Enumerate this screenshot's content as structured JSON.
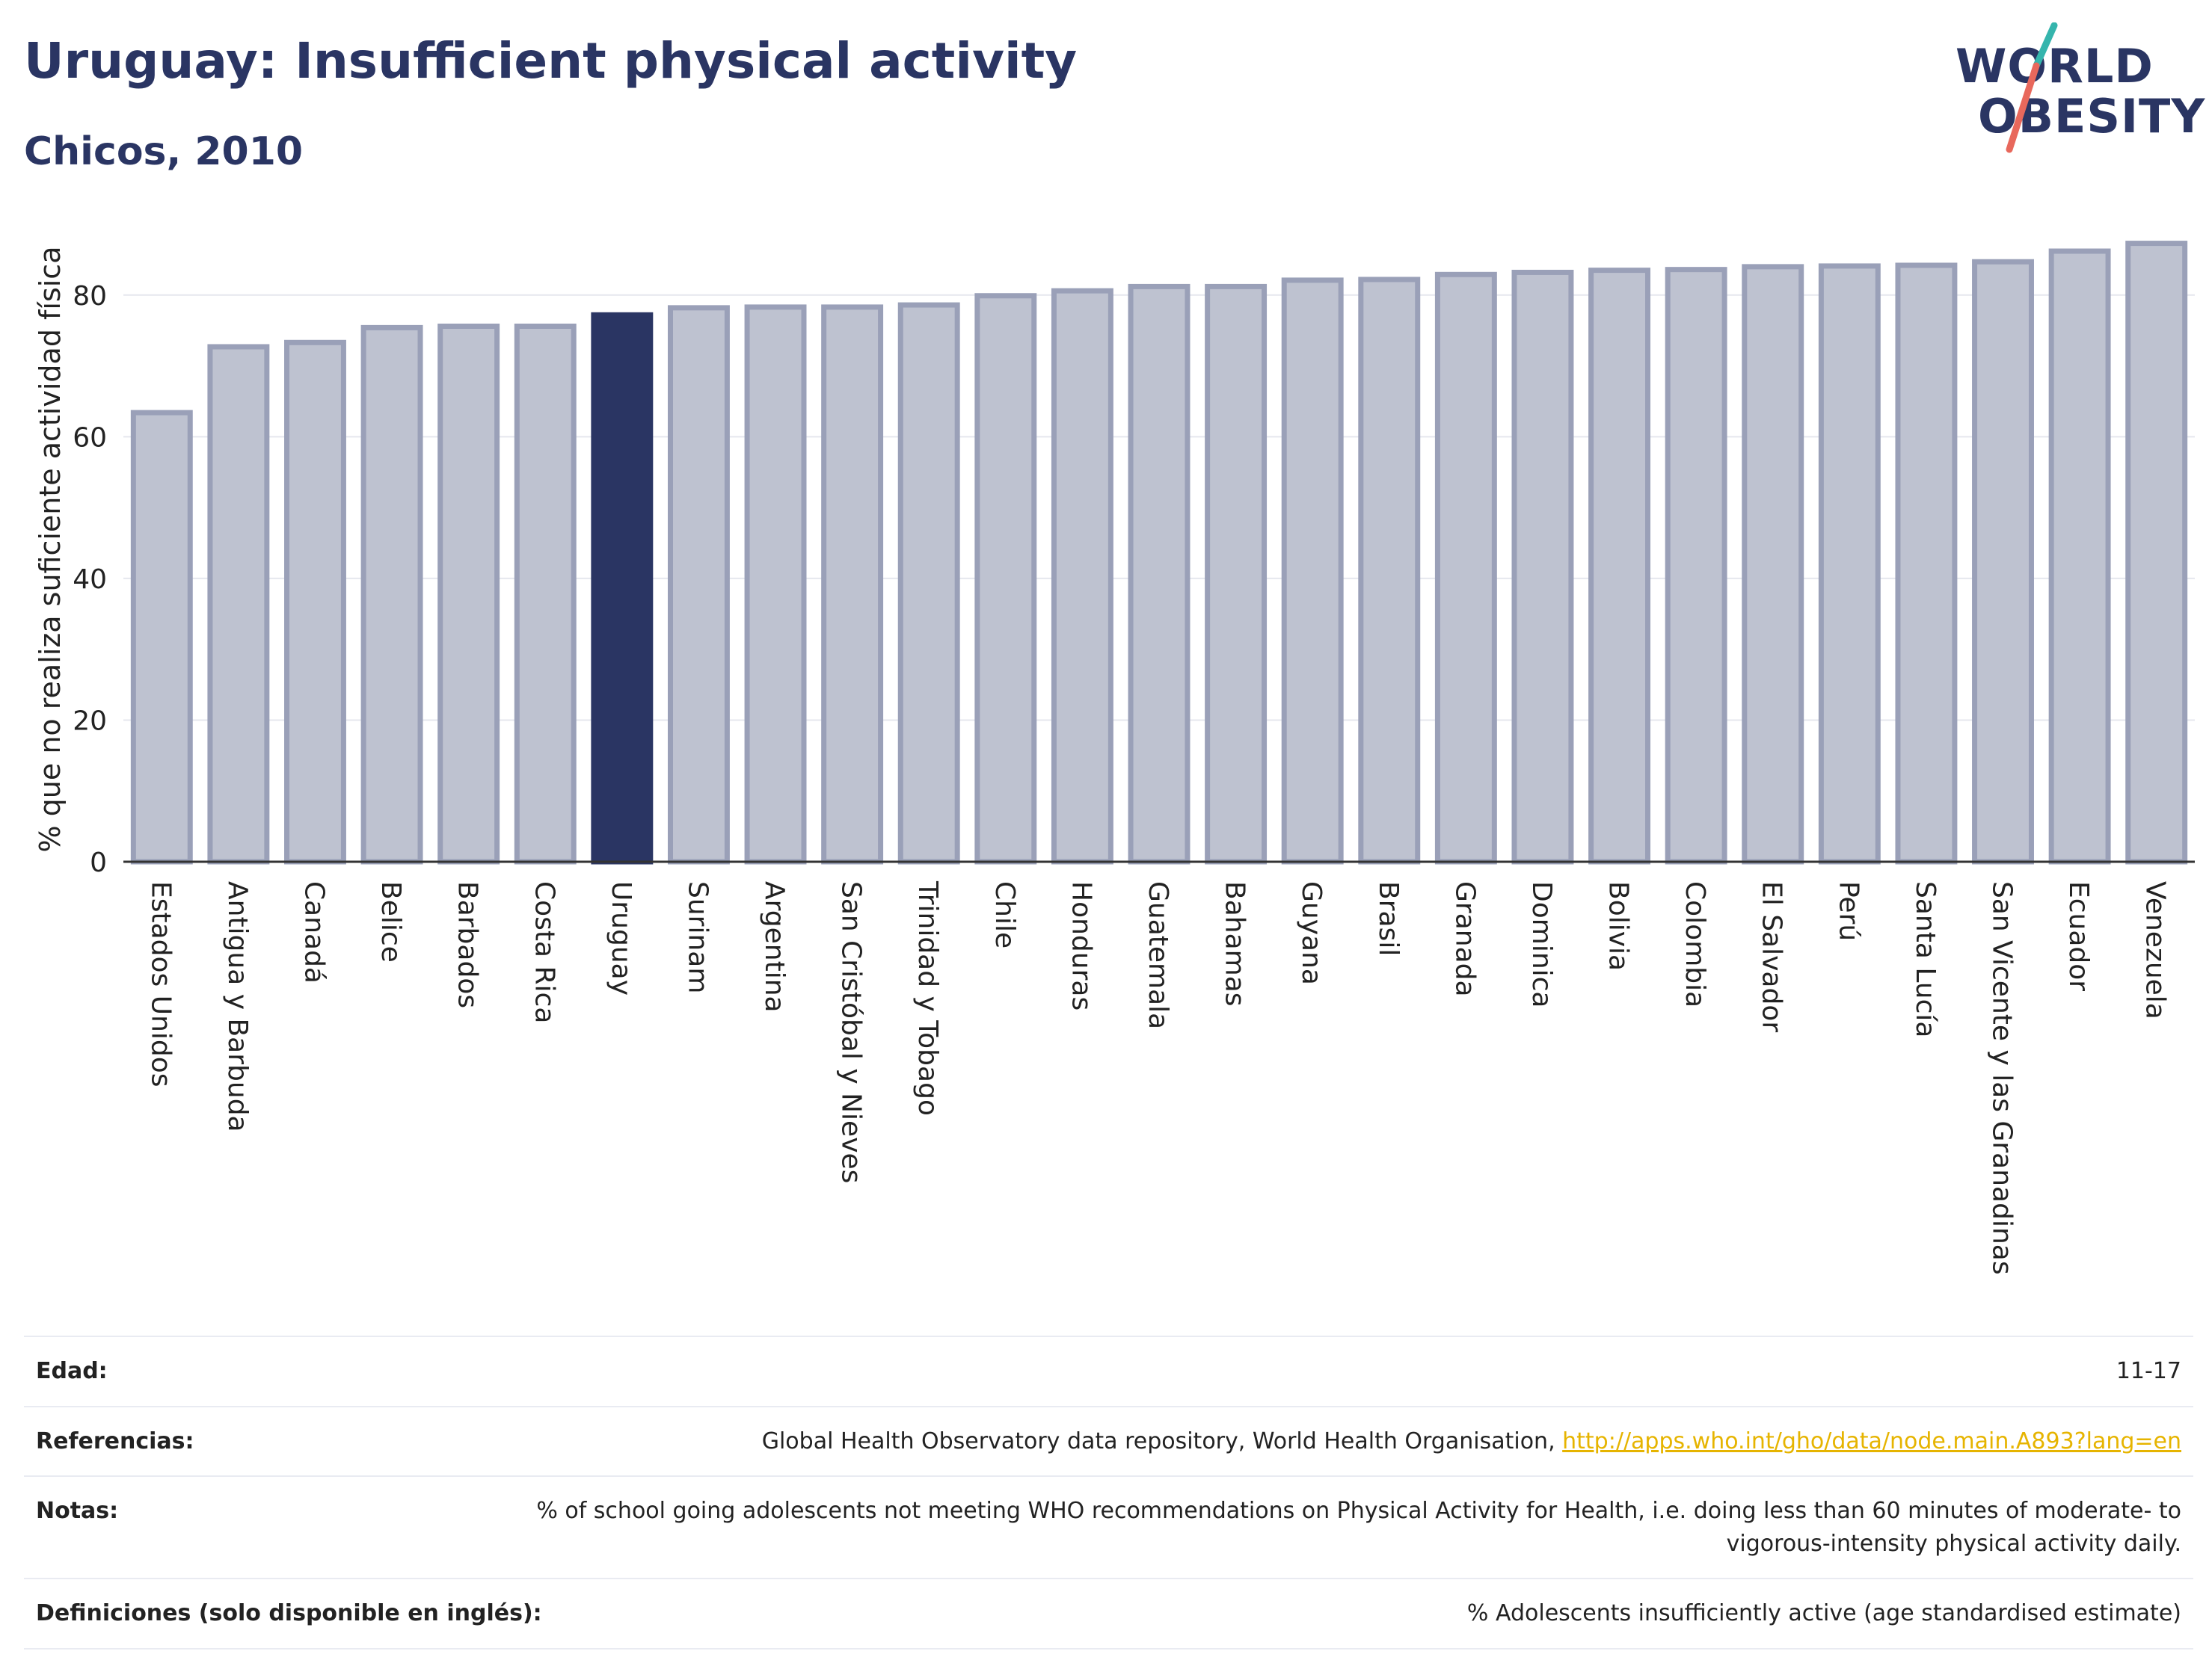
{
  "header": {
    "title": "Uruguay: Insufficient physical activity",
    "subtitle": "Chicos, 2010"
  },
  "logo": {
    "line1": "WORLD",
    "line2": "OBESITY",
    "colors": {
      "text": "#2a3563",
      "slash_top": "#35b5ad",
      "slash_bottom": "#e8685c"
    }
  },
  "chart_data": {
    "type": "bar",
    "ylabel": "% que no realiza suficiente actividad física",
    "ylim": [
      0,
      90
    ],
    "yticks": [
      0,
      20,
      40,
      60,
      80
    ],
    "grid": true,
    "highlight": "Uruguay",
    "colors": {
      "bar": "#bec2d0",
      "bar_border": "#9aa0b8",
      "highlight": "#2a3563",
      "grid": "#e5e7ee",
      "axis": "#333333"
    },
    "categories": [
      "Estados Unidos",
      "Antigua y Barbuda",
      "Canadá",
      "Belice",
      "Barbados",
      "Costa Rica",
      "Uruguay",
      "Surinam",
      "Argentina",
      "San Cristóbal y Nieves",
      "Trinidad y Tobago",
      "Chile",
      "Honduras",
      "Guatemala",
      "Bahamas",
      "Guyana",
      "Brasil",
      "Granada",
      "Dominica",
      "Bolivia",
      "Colombia",
      "El Salvador",
      "Perú",
      "Santa Lucía",
      "San Vicente y las Granadinas",
      "Ecuador",
      "Venezuela"
    ],
    "values": [
      63.4,
      72.7,
      73.3,
      75.4,
      75.6,
      75.6,
      77.2,
      78.2,
      78.3,
      78.3,
      78.6,
      79.9,
      80.6,
      81.2,
      81.2,
      82.1,
      82.2,
      82.9,
      83.2,
      83.5,
      83.6,
      84.0,
      84.1,
      84.2,
      84.7,
      86.2,
      87.3
    ]
  },
  "info": {
    "age_label": "Edad:",
    "age_value": "11-17",
    "references_label": "Referencias:",
    "references_text": "Global Health Observatory data repository, World Health Organisation, ",
    "references_link": "http://apps.who.int/gho/data/node.main.A893?lang=en",
    "notes_label": "Notas:",
    "notes_value": "% of school going adolescents not meeting WHO recommendations on Physical Activity for Health, i.e. doing less than 60 minutes of moderate- to vigorous-intensity physical activity daily.",
    "definitions_label": "Definiciones (solo disponible en inglés):",
    "definitions_value": "% Adolescents insufficiently active (age standardised estimate)"
  }
}
